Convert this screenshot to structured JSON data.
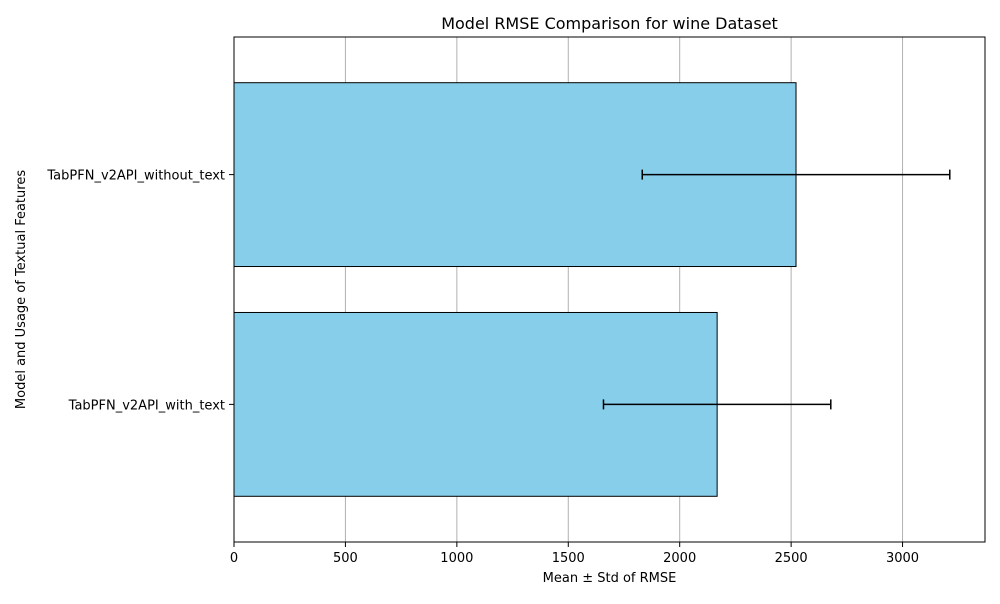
{
  "chart_data": {
    "type": "bar",
    "orientation": "horizontal",
    "title": "Model RMSE Comparison for wine Dataset",
    "xlabel": "Mean ± Std of RMSE",
    "ylabel": "Model and Usage of Textual Features",
    "categories": [
      "TabPFN_v2API_with_text",
      "TabPFN_v2API_without_text"
    ],
    "values": [
      2168,
      2522
    ],
    "errors": [
      510,
      690
    ],
    "xlim": [
      0,
      3370
    ],
    "xticks": [
      0,
      500,
      1000,
      1500,
      2000,
      2500,
      3000
    ],
    "grid": "x",
    "colors": {
      "bar_fill": "#87ceeb",
      "bar_edge": "#000000",
      "error_bar": "#000000",
      "grid": "#b0b0b0"
    }
  }
}
